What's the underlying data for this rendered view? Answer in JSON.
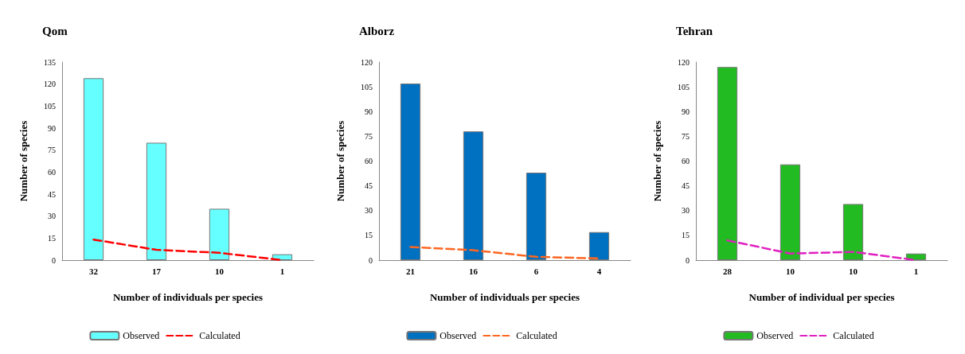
{
  "chart_data": [
    {
      "type": "bar",
      "title": "Qom",
      "xlabel": "Number of individuals per species",
      "ylabel": "Number of species",
      "categories": [
        "32",
        "17",
        "10",
        "1"
      ],
      "series": [
        {
          "name": "Observed",
          "color": "#66ffff",
          "values": [
            124,
            80,
            35,
            4
          ]
        },
        {
          "name": "Calculated",
          "type": "line",
          "color": "#ff0000",
          "line_style": "dashed",
          "marker": "none",
          "values": [
            14,
            7,
            5,
            0
          ]
        }
      ],
      "ylim": [
        0,
        135
      ],
      "yticks": [
        0,
        15,
        30,
        45,
        60,
        75,
        90,
        105,
        120,
        135
      ],
      "grid": false,
      "legend": "bottom"
    },
    {
      "type": "bar",
      "title": "Alborz",
      "xlabel": "Number of individuals per species",
      "ylabel": "Number of species",
      "categories": [
        "21",
        "16",
        "6",
        "4"
      ],
      "series": [
        {
          "name": "Observed",
          "color": "#0070c0",
          "values": [
            107,
            78,
            53,
            17
          ]
        },
        {
          "name": "Calculated",
          "type": "line",
          "color": "#ff6620",
          "line_style": "dashed",
          "marker": "none",
          "values": [
            8,
            6,
            2,
            1
          ]
        }
      ],
      "ylim": [
        0,
        120
      ],
      "yticks": [
        0,
        15,
        30,
        45,
        60,
        75,
        90,
        105,
        120
      ],
      "grid": false,
      "legend": "bottom"
    },
    {
      "type": "bar",
      "title": "Tehran",
      "xlabel": "Number of individual per species",
      "ylabel": "Number of species",
      "categories": [
        "28",
        "10",
        "10",
        "1"
      ],
      "series": [
        {
          "name": "Observed",
          "color": "#22bb22",
          "values": [
            117,
            58,
            34,
            4
          ]
        },
        {
          "name": "Calculated",
          "type": "line",
          "color": "#e020c0",
          "line_style": "dashed",
          "marker": "none",
          "values": [
            12,
            4,
            5,
            0
          ]
        }
      ],
      "ylim": [
        0,
        120
      ],
      "yticks": [
        0,
        15,
        30,
        45,
        60,
        75,
        90,
        105,
        120
      ],
      "grid": false,
      "legend": "bottom"
    }
  ]
}
